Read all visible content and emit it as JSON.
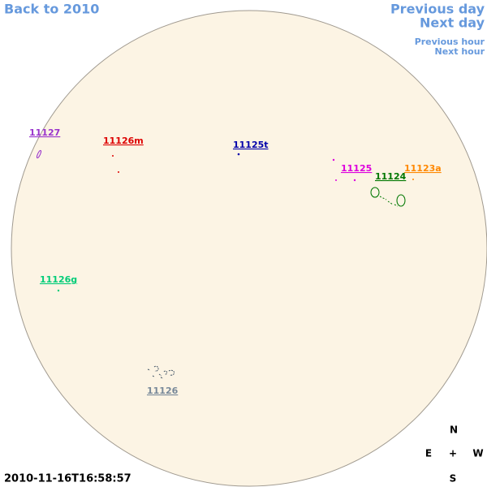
{
  "navigation": {
    "back": "Back to 2010",
    "previous_day": "Previous day",
    "next_day": "Next day",
    "previous_hour": "Previous hour",
    "next_hour": "Next hour"
  },
  "regions": [
    {
      "label": "11127",
      "color": "#9933cc"
    },
    {
      "label": "11126m",
      "color": "#dd0000"
    },
    {
      "label": "11125t",
      "color": "#0000aa"
    },
    {
      "label": "11125",
      "color": "#dd00dd"
    },
    {
      "label": "11124",
      "color": "#007700"
    },
    {
      "label": "11123a",
      "color": "#ff8800"
    },
    {
      "label": "11126g",
      "color": "#00cc77"
    },
    {
      "label": "11126",
      "color": "#778899"
    }
  ],
  "compass": {
    "north": "N",
    "east": "E",
    "center": "+",
    "west": "W",
    "south": "S"
  },
  "timestamp": "2010-11-16T16:58:57"
}
